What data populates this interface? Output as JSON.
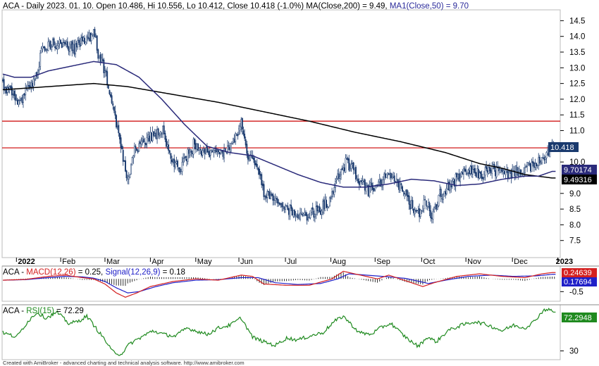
{
  "chart_data": [
    {
      "type": "candlestick",
      "panel": "price",
      "title_parts": {
        "info": "ACA - Daily 2023. 01. 10. Open 10.486, Hi 10.556, Lo 10.412, Close 10.418 (-1.0%) MA(Close,200) = 9.49,",
        "ma50": "MA1(Close,50) = 9.70"
      },
      "ylim": [
        7.0,
        14.8
      ],
      "y_ticks": [
        "14.5",
        "14.0",
        "13.5",
        "13.0",
        "12.5",
        "12.0",
        "11.5",
        "11.0",
        "10.0",
        "9.0",
        "8.5",
        "8.0",
        "7.5"
      ],
      "months": [
        "2022",
        "Feb",
        "Mar",
        "Apr",
        "May",
        "Jun",
        "Jul",
        "Aug",
        "Sep",
        "Oct",
        "Nov",
        "Dec",
        "2023"
      ],
      "month_index": [
        12,
        51,
        90,
        130,
        170,
        208,
        249,
        289,
        328,
        369,
        408,
        449,
        489
      ],
      "horizontal_lines": [
        11.3,
        10.45
      ],
      "price_anchors": [
        [
          0,
          12.4
        ],
        [
          6,
          12.3
        ],
        [
          12,
          12.0
        ],
        [
          17,
          11.9
        ],
        [
          22,
          12.5
        ],
        [
          28,
          12.6
        ],
        [
          35,
          13.6
        ],
        [
          44,
          13.8
        ],
        [
          52,
          13.7
        ],
        [
          62,
          13.7
        ],
        [
          72,
          13.9
        ],
        [
          80,
          14.1
        ],
        [
          87,
          13.2
        ],
        [
          92,
          12.6
        ],
        [
          98,
          11.6
        ],
        [
          104,
          10.5
        ],
        [
          110,
          9.5
        ],
        [
          116,
          10.4
        ],
        [
          126,
          10.7
        ],
        [
          136,
          10.9
        ],
        [
          141,
          11.0
        ],
        [
          148,
          10.1
        ],
        [
          156,
          9.8
        ],
        [
          164,
          10.3
        ],
        [
          172,
          10.5
        ],
        [
          182,
          10.2
        ],
        [
          194,
          10.3
        ],
        [
          203,
          10.6
        ],
        [
          210,
          11.2
        ],
        [
          216,
          10.2
        ],
        [
          224,
          9.8
        ],
        [
          230,
          9.0
        ],
        [
          240,
          8.8
        ],
        [
          252,
          8.5
        ],
        [
          262,
          8.3
        ],
        [
          270,
          8.3
        ],
        [
          280,
          8.5
        ],
        [
          290,
          8.9
        ],
        [
          296,
          9.6
        ],
        [
          302,
          10.0
        ],
        [
          308,
          9.8
        ],
        [
          314,
          9.4
        ],
        [
          320,
          9.2
        ],
        [
          330,
          9.2
        ],
        [
          338,
          9.6
        ],
        [
          344,
          9.5
        ],
        [
          354,
          9.0
        ],
        [
          360,
          8.6
        ],
        [
          366,
          8.3
        ],
        [
          372,
          8.8
        ],
        [
          378,
          8.3
        ],
        [
          384,
          8.8
        ],
        [
          392,
          9.2
        ],
        [
          402,
          9.5
        ],
        [
          410,
          9.7
        ],
        [
          422,
          9.6
        ],
        [
          432,
          9.8
        ],
        [
          442,
          9.6
        ],
        [
          452,
          9.7
        ],
        [
          462,
          9.8
        ],
        [
          470,
          9.9
        ],
        [
          478,
          10.2
        ],
        [
          484,
          10.5
        ]
      ],
      "ma200_anchors": [
        [
          0,
          12.3
        ],
        [
          40,
          12.4
        ],
        [
          80,
          12.5
        ],
        [
          110,
          12.4
        ],
        [
          150,
          12.15
        ],
        [
          190,
          11.9
        ],
        [
          230,
          11.6
        ],
        [
          270,
          11.3
        ],
        [
          310,
          10.95
        ],
        [
          350,
          10.65
        ],
        [
          390,
          10.3
        ],
        [
          420,
          9.95
        ],
        [
          440,
          9.8
        ],
        [
          460,
          9.6
        ],
        [
          484,
          9.49
        ]
      ],
      "ma50_anchors": [
        [
          0,
          12.8
        ],
        [
          10,
          12.7
        ],
        [
          25,
          12.7
        ],
        [
          40,
          12.9
        ],
        [
          60,
          13.05
        ],
        [
          80,
          13.2
        ],
        [
          100,
          13.1
        ],
        [
          120,
          12.7
        ],
        [
          140,
          12.0
        ],
        [
          160,
          11.2
        ],
        [
          180,
          10.5
        ],
        [
          200,
          10.3
        ],
        [
          220,
          10.2
        ],
        [
          240,
          9.9
        ],
        [
          260,
          9.6
        ],
        [
          280,
          9.35
        ],
        [
          300,
          9.2
        ],
        [
          320,
          9.2
        ],
        [
          340,
          9.3
        ],
        [
          360,
          9.45
        ],
        [
          380,
          9.4
        ],
        [
          400,
          9.25
        ],
        [
          420,
          9.3
        ],
        [
          440,
          9.45
        ],
        [
          460,
          9.55
        ],
        [
          472,
          9.55
        ],
        [
          484,
          9.7
        ]
      ],
      "value_labels": {
        "close": "10.418",
        "ma50": "9.70174",
        "ma200": "9.49316"
      },
      "colors": {
        "ma50": "#2a2a7a",
        "ma200": "#000000",
        "hline": "#cc0000",
        "close_label": "#1a3a6e"
      }
    },
    {
      "type": "macd",
      "panel": "macd",
      "title_parts": {
        "prefix": "ACA - ",
        "macd": "MACD(12,26)",
        "macd_val": " = 0.25, ",
        "signal": "Signal(12,26,9)",
        "signal_val": " = 0.18"
      },
      "ylim": [
        -0.85,
        0.45
      ],
      "y_ticks": [
        "-0.5"
      ],
      "macd_anchors": [
        [
          0,
          -0.05
        ],
        [
          20,
          -0.02
        ],
        [
          40,
          0.1
        ],
        [
          55,
          0.15
        ],
        [
          70,
          0.05
        ],
        [
          80,
          0.0
        ],
        [
          90,
          -0.2
        ],
        [
          100,
          -0.55
        ],
        [
          108,
          -0.72
        ],
        [
          118,
          -0.55
        ],
        [
          130,
          -0.3
        ],
        [
          150,
          -0.1
        ],
        [
          170,
          0.0
        ],
        [
          190,
          -0.05
        ],
        [
          210,
          0.15
        ],
        [
          220,
          0.1
        ],
        [
          230,
          -0.2
        ],
        [
          250,
          -0.25
        ],
        [
          270,
          -0.25
        ],
        [
          290,
          0.0
        ],
        [
          300,
          0.3
        ],
        [
          310,
          0.2
        ],
        [
          330,
          0.0
        ],
        [
          340,
          0.15
        ],
        [
          350,
          0.0
        ],
        [
          370,
          -0.3
        ],
        [
          380,
          -0.15
        ],
        [
          400,
          0.1
        ],
        [
          420,
          0.2
        ],
        [
          440,
          0.1
        ],
        [
          460,
          0.05
        ],
        [
          475,
          0.2
        ],
        [
          484,
          0.25
        ]
      ],
      "signal_anchors": [
        [
          0,
          -0.05
        ],
        [
          20,
          -0.03
        ],
        [
          40,
          0.05
        ],
        [
          55,
          0.1
        ],
        [
          70,
          0.08
        ],
        [
          80,
          0.03
        ],
        [
          90,
          -0.1
        ],
        [
          100,
          -0.35
        ],
        [
          110,
          -0.55
        ],
        [
          120,
          -0.5
        ],
        [
          135,
          -0.3
        ],
        [
          150,
          -0.15
        ],
        [
          170,
          -0.05
        ],
        [
          190,
          -0.03
        ],
        [
          210,
          0.05
        ],
        [
          225,
          0.05
        ],
        [
          240,
          -0.15
        ],
        [
          260,
          -0.22
        ],
        [
          280,
          -0.18
        ],
        [
          295,
          0.0
        ],
        [
          305,
          0.2
        ],
        [
          320,
          0.15
        ],
        [
          340,
          0.08
        ],
        [
          355,
          0.02
        ],
        [
          375,
          -0.18
        ],
        [
          390,
          -0.05
        ],
        [
          410,
          0.1
        ],
        [
          430,
          0.15
        ],
        [
          450,
          0.1
        ],
        [
          470,
          0.12
        ],
        [
          484,
          0.18
        ]
      ],
      "value_labels": {
        "macd": "0.24639",
        "signal": "0.17694"
      },
      "colors": {
        "macd": "#d42020",
        "signal": "#2020c8",
        "hist": "#000000"
      }
    },
    {
      "type": "line",
      "panel": "rsi",
      "title_parts": {
        "prefix": "ACA - ",
        "rsi": "RSI(15)",
        "rsi_val": " = 72.29"
      },
      "ylim": [
        22,
        78
      ],
      "y_ticks": [
        "30"
      ],
      "rsi_anchors": [
        [
          0,
          50
        ],
        [
          12,
          45
        ],
        [
          22,
          62
        ],
        [
          30,
          72
        ],
        [
          38,
          66
        ],
        [
          48,
          72
        ],
        [
          58,
          60
        ],
        [
          66,
          62
        ],
        [
          74,
          68
        ],
        [
          82,
          55
        ],
        [
          90,
          42
        ],
        [
          96,
          30
        ],
        [
          104,
          26
        ],
        [
          112,
          38
        ],
        [
          122,
          45
        ],
        [
          132,
          52
        ],
        [
          142,
          48
        ],
        [
          152,
          46
        ],
        [
          162,
          55
        ],
        [
          170,
          52
        ],
        [
          180,
          48
        ],
        [
          190,
          55
        ],
        [
          200,
          58
        ],
        [
          210,
          66
        ],
        [
          220,
          45
        ],
        [
          230,
          40
        ],
        [
          240,
          36
        ],
        [
          250,
          44
        ],
        [
          260,
          42
        ],
        [
          270,
          46
        ],
        [
          282,
          50
        ],
        [
          292,
          62
        ],
        [
          300,
          68
        ],
        [
          306,
          60
        ],
        [
          314,
          50
        ],
        [
          324,
          48
        ],
        [
          334,
          56
        ],
        [
          342,
          60
        ],
        [
          352,
          48
        ],
        [
          360,
          40
        ],
        [
          366,
          35
        ],
        [
          374,
          45
        ],
        [
          382,
          40
        ],
        [
          392,
          52
        ],
        [
          404,
          58
        ],
        [
          416,
          62
        ],
        [
          428,
          58
        ],
        [
          440,
          52
        ],
        [
          450,
          58
        ],
        [
          460,
          55
        ],
        [
          468,
          62
        ],
        [
          476,
          74
        ],
        [
          481,
          76
        ],
        [
          484,
          72.29
        ]
      ],
      "value_labels": {
        "rsi": "72.2948"
      },
      "colors": {
        "rsi": "#1f8a1f",
        "rsi_label": "#1f8a1f"
      }
    }
  ],
  "footer": "Created with AmiBroker - advanced charting and technical analysis software. http://www.amibroker.com"
}
